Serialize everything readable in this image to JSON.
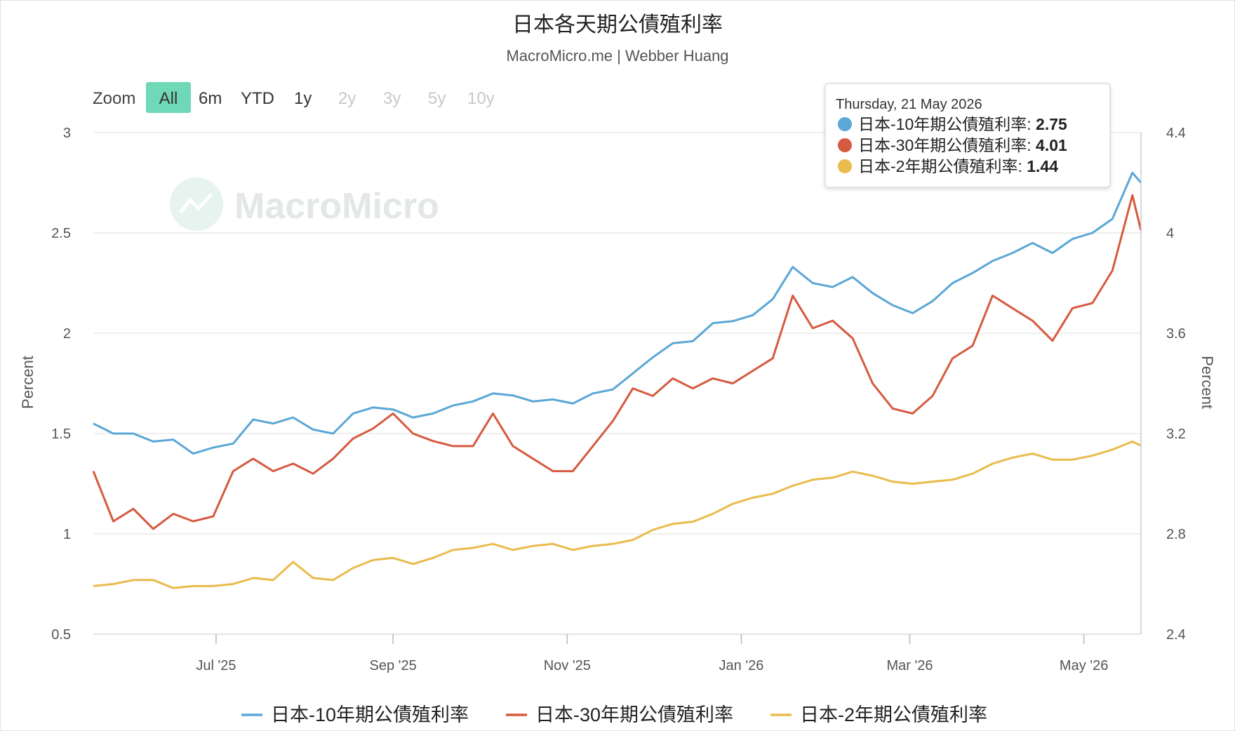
{
  "chart_data": {
    "type": "line",
    "title": "日本各天期公債殖利率",
    "subtitle": "MacroMicro.me | Webber Huang",
    "watermark": "MacroMicro",
    "zoom": {
      "label": "Zoom",
      "buttons": [
        {
          "label": "All",
          "active": true,
          "enabled": true
        },
        {
          "label": "6m",
          "active": false,
          "enabled": true
        },
        {
          "label": "YTD",
          "active": false,
          "enabled": true
        },
        {
          "label": "1y",
          "active": false,
          "enabled": true
        },
        {
          "label": "2y",
          "active": false,
          "enabled": false
        },
        {
          "label": "3y",
          "active": false,
          "enabled": false
        },
        {
          "label": "5y",
          "active": false,
          "enabled": false
        },
        {
          "label": "10y",
          "active": false,
          "enabled": false
        }
      ]
    },
    "x_range": [
      "2025-05-19",
      "2026-05-21"
    ],
    "x_ticks": [
      {
        "date": "2025-07-01",
        "label": "Jul '25"
      },
      {
        "date": "2025-09-01",
        "label": "Sep '25"
      },
      {
        "date": "2025-11-01",
        "label": "Nov '25"
      },
      {
        "date": "2026-01-01",
        "label": "Jan '26"
      },
      {
        "date": "2026-03-01",
        "label": "Mar '26"
      },
      {
        "date": "2026-05-01",
        "label": "May '26"
      }
    ],
    "y_left": {
      "label": "Percent",
      "min": 0.5,
      "max": 3,
      "ticks": [
        "0.5",
        "1",
        "1.5",
        "2",
        "2.5",
        "3"
      ]
    },
    "y_right": {
      "label": "Percent",
      "min": 2.4,
      "max": 4.4,
      "ticks": [
        "2.4",
        "2.8",
        "3.2",
        "3.6",
        "4",
        "4.4"
      ]
    },
    "grid": true,
    "legend_position": "bottom",
    "tooltip": {
      "date": "Thursday, 21 May 2026",
      "rows": [
        {
          "name": "日本-10年期公債殖利率",
          "value": "2.75",
          "color": "#5ba7d6"
        },
        {
          "name": "日本-30年期公債殖利率",
          "value": "4.01",
          "color": "#d65a3f"
        },
        {
          "name": "日本-2年期公債殖利率",
          "value": "1.44",
          "color": "#eabb4d"
        }
      ]
    },
    "series": [
      {
        "name": "日本-10年期公債殖利率",
        "color": "#5ba7d6",
        "axis": "left",
        "points": [
          [
            "2025-05-19",
            1.55
          ],
          [
            "2025-05-26",
            1.5
          ],
          [
            "2025-06-02",
            1.5
          ],
          [
            "2025-06-09",
            1.46
          ],
          [
            "2025-06-16",
            1.47
          ],
          [
            "2025-06-23",
            1.4
          ],
          [
            "2025-06-30",
            1.43
          ],
          [
            "2025-07-07",
            1.45
          ],
          [
            "2025-07-14",
            1.57
          ],
          [
            "2025-07-21",
            1.55
          ],
          [
            "2025-07-28",
            1.58
          ],
          [
            "2025-08-04",
            1.52
          ],
          [
            "2025-08-11",
            1.5
          ],
          [
            "2025-08-18",
            1.6
          ],
          [
            "2025-08-25",
            1.63
          ],
          [
            "2025-09-01",
            1.62
          ],
          [
            "2025-09-08",
            1.58
          ],
          [
            "2025-09-15",
            1.6
          ],
          [
            "2025-09-22",
            1.64
          ],
          [
            "2025-09-29",
            1.66
          ],
          [
            "2025-10-06",
            1.7
          ],
          [
            "2025-10-13",
            1.69
          ],
          [
            "2025-10-20",
            1.66
          ],
          [
            "2025-10-27",
            1.67
          ],
          [
            "2025-11-03",
            1.65
          ],
          [
            "2025-11-10",
            1.7
          ],
          [
            "2025-11-17",
            1.72
          ],
          [
            "2025-11-24",
            1.8
          ],
          [
            "2025-12-01",
            1.88
          ],
          [
            "2025-12-08",
            1.95
          ],
          [
            "2025-12-15",
            1.96
          ],
          [
            "2025-12-22",
            2.05
          ],
          [
            "2025-12-29",
            2.06
          ],
          [
            "2026-01-05",
            2.09
          ],
          [
            "2026-01-12",
            2.17
          ],
          [
            "2026-01-19",
            2.33
          ],
          [
            "2026-01-26",
            2.25
          ],
          [
            "2026-02-02",
            2.23
          ],
          [
            "2026-02-09",
            2.28
          ],
          [
            "2026-02-16",
            2.2
          ],
          [
            "2026-02-23",
            2.14
          ],
          [
            "2026-03-02",
            2.1
          ],
          [
            "2026-03-09",
            2.16
          ],
          [
            "2026-03-16",
            2.25
          ],
          [
            "2026-03-23",
            2.3
          ],
          [
            "2026-03-30",
            2.36
          ],
          [
            "2026-04-06",
            2.4
          ],
          [
            "2026-04-13",
            2.45
          ],
          [
            "2026-04-20",
            2.4
          ],
          [
            "2026-04-27",
            2.47
          ],
          [
            "2026-05-04",
            2.5
          ],
          [
            "2026-05-11",
            2.57
          ],
          [
            "2026-05-18",
            2.8
          ],
          [
            "2026-05-21",
            2.75
          ]
        ]
      },
      {
        "name": "日本-30年期公債殖利率",
        "color": "#d65a3f",
        "axis": "right",
        "points": [
          [
            "2025-05-19",
            3.05
          ],
          [
            "2025-05-26",
            2.85
          ],
          [
            "2025-06-02",
            2.9
          ],
          [
            "2025-06-09",
            2.82
          ],
          [
            "2025-06-16",
            2.88
          ],
          [
            "2025-06-23",
            2.85
          ],
          [
            "2025-06-30",
            2.87
          ],
          [
            "2025-07-07",
            3.05
          ],
          [
            "2025-07-14",
            3.1
          ],
          [
            "2025-07-21",
            3.05
          ],
          [
            "2025-07-28",
            3.08
          ],
          [
            "2025-08-04",
            3.04
          ],
          [
            "2025-08-11",
            3.1
          ],
          [
            "2025-08-18",
            3.18
          ],
          [
            "2025-08-25",
            3.22
          ],
          [
            "2025-09-01",
            3.28
          ],
          [
            "2025-09-08",
            3.2
          ],
          [
            "2025-09-15",
            3.17
          ],
          [
            "2025-09-22",
            3.15
          ],
          [
            "2025-09-29",
            3.15
          ],
          [
            "2025-10-06",
            3.28
          ],
          [
            "2025-10-13",
            3.15
          ],
          [
            "2025-10-20",
            3.1
          ],
          [
            "2025-10-27",
            3.05
          ],
          [
            "2025-11-03",
            3.05
          ],
          [
            "2025-11-10",
            3.15
          ],
          [
            "2025-11-17",
            3.25
          ],
          [
            "2025-11-24",
            3.38
          ],
          [
            "2025-12-01",
            3.35
          ],
          [
            "2025-12-08",
            3.42
          ],
          [
            "2025-12-15",
            3.38
          ],
          [
            "2025-12-22",
            3.42
          ],
          [
            "2025-12-29",
            3.4
          ],
          [
            "2026-01-05",
            3.45
          ],
          [
            "2026-01-12",
            3.5
          ],
          [
            "2026-01-19",
            3.75
          ],
          [
            "2026-01-26",
            3.62
          ],
          [
            "2026-02-02",
            3.65
          ],
          [
            "2026-02-09",
            3.58
          ],
          [
            "2026-02-16",
            3.4
          ],
          [
            "2026-02-23",
            3.3
          ],
          [
            "2026-03-02",
            3.28
          ],
          [
            "2026-03-09",
            3.35
          ],
          [
            "2026-03-16",
            3.5
          ],
          [
            "2026-03-23",
            3.55
          ],
          [
            "2026-03-30",
            3.75
          ],
          [
            "2026-04-06",
            3.7
          ],
          [
            "2026-04-13",
            3.65
          ],
          [
            "2026-04-20",
            3.57
          ],
          [
            "2026-04-27",
            3.7
          ],
          [
            "2026-05-04",
            3.72
          ],
          [
            "2026-05-11",
            3.85
          ],
          [
            "2026-05-18",
            4.15
          ],
          [
            "2026-05-21",
            4.01
          ]
        ]
      },
      {
        "name": "日本-2年期公債殖利率",
        "color": "#eabb4d",
        "axis": "left",
        "points": [
          [
            "2025-05-19",
            0.74
          ],
          [
            "2025-05-26",
            0.75
          ],
          [
            "2025-06-02",
            0.77
          ],
          [
            "2025-06-09",
            0.77
          ],
          [
            "2025-06-16",
            0.73
          ],
          [
            "2025-06-23",
            0.74
          ],
          [
            "2025-06-30",
            0.74
          ],
          [
            "2025-07-07",
            0.75
          ],
          [
            "2025-07-14",
            0.78
          ],
          [
            "2025-07-21",
            0.77
          ],
          [
            "2025-07-28",
            0.86
          ],
          [
            "2025-08-04",
            0.78
          ],
          [
            "2025-08-11",
            0.77
          ],
          [
            "2025-08-18",
            0.83
          ],
          [
            "2025-08-25",
            0.87
          ],
          [
            "2025-09-01",
            0.88
          ],
          [
            "2025-09-08",
            0.85
          ],
          [
            "2025-09-15",
            0.88
          ],
          [
            "2025-09-22",
            0.92
          ],
          [
            "2025-09-29",
            0.93
          ],
          [
            "2025-10-06",
            0.95
          ],
          [
            "2025-10-13",
            0.92
          ],
          [
            "2025-10-20",
            0.94
          ],
          [
            "2025-10-27",
            0.95
          ],
          [
            "2025-11-03",
            0.92
          ],
          [
            "2025-11-10",
            0.94
          ],
          [
            "2025-11-17",
            0.95
          ],
          [
            "2025-11-24",
            0.97
          ],
          [
            "2025-12-01",
            1.02
          ],
          [
            "2025-12-08",
            1.05
          ],
          [
            "2025-12-15",
            1.06
          ],
          [
            "2025-12-22",
            1.1
          ],
          [
            "2025-12-29",
            1.15
          ],
          [
            "2026-01-05",
            1.18
          ],
          [
            "2026-01-12",
            1.2
          ],
          [
            "2026-01-19",
            1.24
          ],
          [
            "2026-01-26",
            1.27
          ],
          [
            "2026-02-02",
            1.28
          ],
          [
            "2026-02-09",
            1.31
          ],
          [
            "2026-02-16",
            1.29
          ],
          [
            "2026-02-23",
            1.26
          ],
          [
            "2026-03-02",
            1.25
          ],
          [
            "2026-03-09",
            1.26
          ],
          [
            "2026-03-16",
            1.27
          ],
          [
            "2026-03-23",
            1.3
          ],
          [
            "2026-03-30",
            1.35
          ],
          [
            "2026-04-06",
            1.38
          ],
          [
            "2026-04-13",
            1.4
          ],
          [
            "2026-04-20",
            1.37
          ],
          [
            "2026-04-27",
            1.37
          ],
          [
            "2026-05-04",
            1.39
          ],
          [
            "2026-05-11",
            1.42
          ],
          [
            "2026-05-18",
            1.46
          ],
          [
            "2026-05-21",
            1.44
          ]
        ]
      }
    ]
  }
}
